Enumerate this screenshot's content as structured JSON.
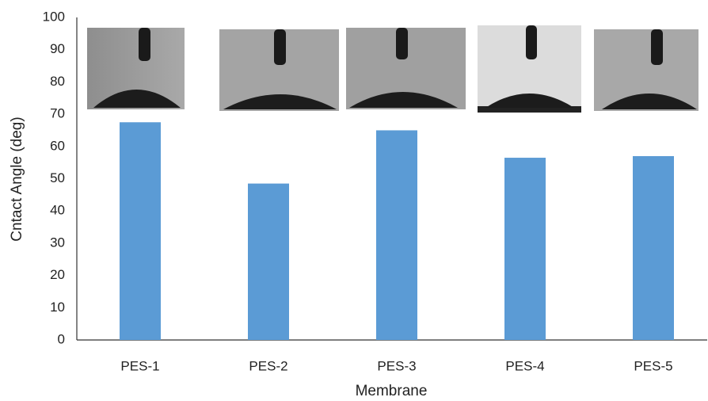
{
  "chart_data": {
    "type": "bar",
    "x_label": "Membrane",
    "y_label": "Cntact Angle (deg)",
    "categories": [
      "PES-1",
      "PES-2",
      "PES-3",
      "PES-4",
      "PES-5"
    ],
    "values": [
      67.5,
      48.5,
      65,
      56.5,
      57
    ],
    "color": "#5b9bd5",
    "ylim": [
      0,
      100
    ],
    "yticks": [
      0,
      10,
      20,
      30,
      40,
      50,
      60,
      70,
      80,
      90,
      100
    ],
    "grid": false
  }
}
